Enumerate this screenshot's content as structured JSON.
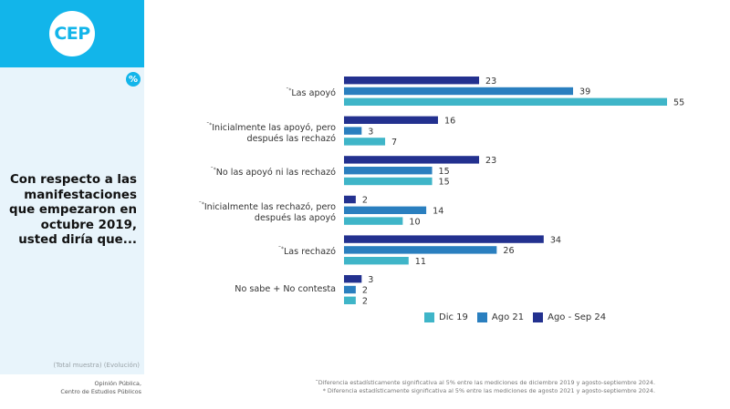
{
  "brand": {
    "logo_text": "CEP",
    "percent_badge": "%",
    "accent_color": "#12b5ea"
  },
  "sidebar": {
    "question": "Con respecto a las manifestaciones que empezaron en octubre 2019, usted diría que...",
    "sample_note": "(Total muestra) (Evolución)",
    "source_line1": "Opinión Pública,",
    "source_line2": "Centro de Estudios Públicos"
  },
  "footnotes": {
    "line1": "˜Diferencia estadísticamente significativa al 5% entre las mediciones de diciembre 2019 y agosto-septiembre 2024.",
    "line2": "* Diferencia estadísticamente significativa al 5% entre las mediciones de agosto 2021 y agosto-septiembre 2024."
  },
  "chart_data": {
    "type": "bar",
    "orientation": "horizontal",
    "title": "Con respecto a las manifestaciones que empezaron en octubre 2019, usted diría que...",
    "xlabel": "",
    "ylabel": "",
    "unit": "%",
    "grid": false,
    "legend_position": "bottom",
    "xlim": [
      0,
      55
    ],
    "categories": [
      {
        "marker": "˜*",
        "label_line1": "Las apoyó",
        "label_line2": ""
      },
      {
        "marker": "˜*",
        "label_line1": "Inicialmente las apoyó, pero",
        "label_line2": "después las rechazó"
      },
      {
        "marker": "˜*",
        "label_line1": "No las apoyó ni las rechazó",
        "label_line2": ""
      },
      {
        "marker": "˜*",
        "label_line1": "Inicialmente las rechazó, pero",
        "label_line2": "después las apoyó"
      },
      {
        "marker": "˜*",
        "label_line1": "Las rechazó",
        "label_line2": ""
      },
      {
        "marker": "",
        "label_line1": "No sabe + No contesta",
        "label_line2": ""
      }
    ],
    "series": [
      {
        "name": "Ago - Sep 24",
        "color": "#23318f",
        "values": [
          23,
          16,
          23,
          2,
          34,
          3
        ]
      },
      {
        "name": "Ago 21",
        "color": "#2a7fbf",
        "values": [
          39,
          3,
          15,
          14,
          26,
          2
        ]
      },
      {
        "name": "Dic 19",
        "color": "#3fb5c8",
        "values": [
          55,
          7,
          15,
          10,
          11,
          2
        ]
      }
    ],
    "legend": [
      {
        "name": "Dic 19",
        "color": "#3fb5c8"
      },
      {
        "name": "Ago 21",
        "color": "#2a7fbf"
      },
      {
        "name": "Ago - Sep 24",
        "color": "#23318f"
      }
    ]
  }
}
